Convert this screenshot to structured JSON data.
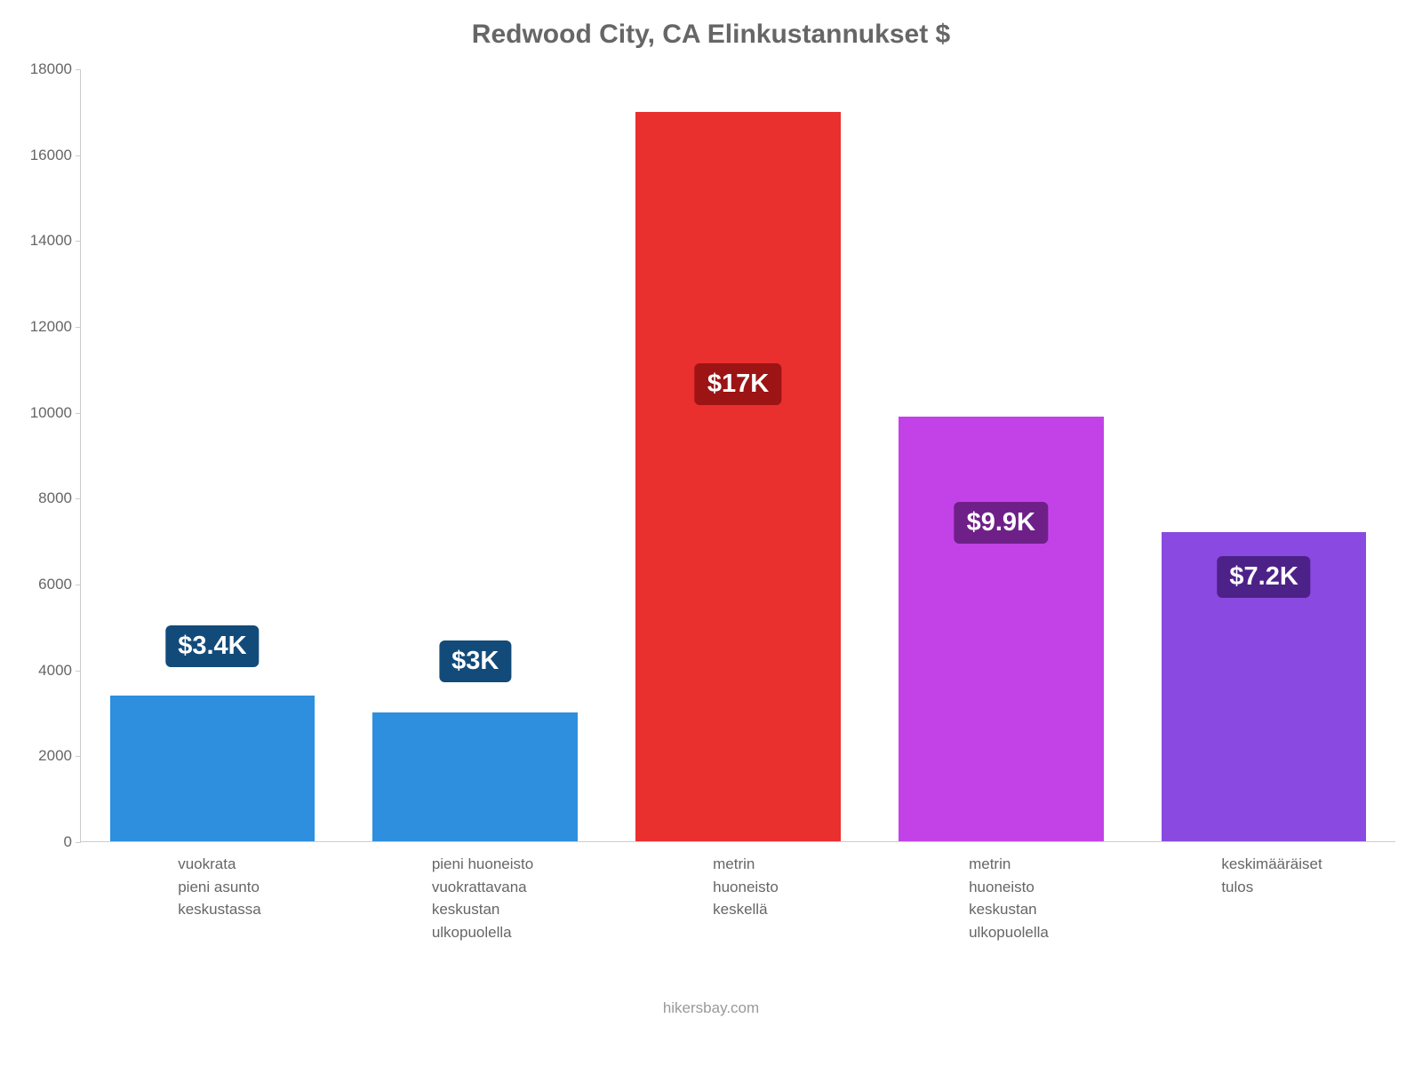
{
  "chart": {
    "type": "bar",
    "title": "Redwood City, CA Elinkustannukset $",
    "title_fontsize": 30,
    "title_color": "#666666",
    "background_color": "#ffffff",
    "axis_color": "#cccccc",
    "tick_label_color": "#666666",
    "tick_label_fontsize": 17,
    "yaxis": {
      "min": 0,
      "max": 18000,
      "step": 2000,
      "ticks": [
        "0",
        "2000",
        "4000",
        "6000",
        "8000",
        "10000",
        "12000",
        "14000",
        "16000",
        "18000"
      ]
    },
    "bar_width_pct": 78,
    "value_label_fontsize": 29,
    "value_label_color": "#ffffff",
    "bars": [
      {
        "label": "vuokrata\npieni asunto\nkeskustassa",
        "value": 3400,
        "display": "$3.4K",
        "fill": "#2d8fde",
        "badge_bg": "#124b7a",
        "badge_top_pct": 72
      },
      {
        "label": "pieni huoneisto\nvuokrattavana\nkeskustan\nulkopuolella",
        "value": 3000,
        "display": "$3K",
        "fill": "#2d8fde",
        "badge_bg": "#124b7a",
        "badge_top_pct": 74
      },
      {
        "label": "metrin\nhuoneisto\nkeskellä",
        "value": 17000,
        "display": "$17K",
        "fill": "#ea2f2f",
        "badge_bg": "#9c1414",
        "badge_top_pct": 38
      },
      {
        "label": "metrin\nhuoneisto\nkeskustan\nulkopuolella",
        "value": 9900,
        "display": "$9.9K",
        "fill": "#c342e8",
        "badge_bg": "#6e2088",
        "badge_top_pct": 56
      },
      {
        "label": "keskimääräiset\ntulos",
        "value": 7200,
        "display": "$7.2K",
        "fill": "#8a49e0",
        "badge_bg": "#4c2288",
        "badge_top_pct": 63
      }
    ],
    "attribution": "hikersbay.com",
    "attribution_color": "#999999"
  }
}
